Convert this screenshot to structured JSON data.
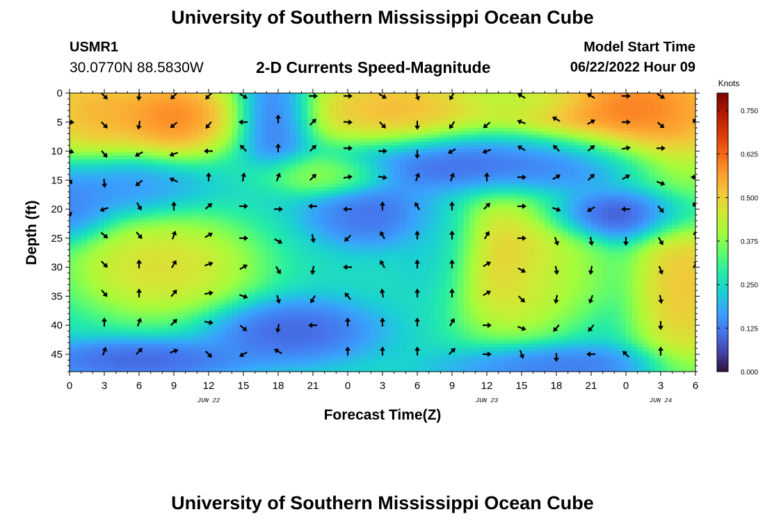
{
  "header": {
    "title": "University of Southern Mississippi Ocean Cube",
    "station_id": "USMR1",
    "station_coords": "30.0770N  88.5830W",
    "subtitle": "2-D Currents Speed-Magnitude",
    "model_start_label": "Model Start Time",
    "model_start_value": "06/22/2022 Hour 09"
  },
  "footer": {
    "title": "University of Southern Mississippi Ocean Cube"
  },
  "colors": {
    "background": "#ffffff",
    "arrow": "#000000",
    "colormap": [
      "#30123b",
      "#4145ab",
      "#4675ed",
      "#39a2fc",
      "#1bcfd4",
      "#24eca6",
      "#61fc6c",
      "#a4fc3b",
      "#d1e834",
      "#f3c63a",
      "#fe9b2d",
      "#f36315",
      "#d93806",
      "#b11901",
      "#7a0402"
    ]
  },
  "chart_data": {
    "type": "heatmap",
    "title": "2-D Currents Speed-Magnitude",
    "xlabel": "Forecast Time(Z)",
    "ylabel": "Depth (ft)",
    "x_ticks": [
      "0",
      "3",
      "6",
      "9",
      "12",
      "15",
      "18",
      "21",
      "0",
      "3",
      "6",
      "9",
      "12",
      "15",
      "18",
      "21",
      "0",
      "3",
      "6"
    ],
    "x_range_hours": [
      0,
      54
    ],
    "date_labels": [
      {
        "label": "JUN 22",
        "hour": 12
      },
      {
        "label": "JUN 23",
        "hour": 36
      },
      {
        "label": "JUN 24",
        "hour": 51
      }
    ],
    "y_ticks": [
      0,
      5,
      10,
      15,
      20,
      25,
      30,
      35,
      40,
      45
    ],
    "ylim": [
      0,
      48
    ],
    "y_inverted": true,
    "colorbar": {
      "label": "Knots",
      "ticks": [
        "0.000",
        "0.125",
        "0.250",
        "0.375",
        "0.500",
        "0.625",
        "0.750"
      ],
      "range": [
        0,
        0.8
      ]
    },
    "speed_features": [
      {
        "hour": 2,
        "depth": 3,
        "speed": 0.62,
        "sx": 3,
        "sy": 5
      },
      {
        "hour": 9,
        "depth": 4,
        "speed": 0.7,
        "sx": 3,
        "sy": 4
      },
      {
        "hour": 18,
        "depth": 4,
        "speed": 0.05,
        "sx": 1.7,
        "sy": 5
      },
      {
        "hour": 28,
        "depth": 3,
        "speed": 0.62,
        "sx": 5,
        "sy": 4
      },
      {
        "hour": 34,
        "depth": 12,
        "speed": 0.03,
        "sx": 6,
        "sy": 3
      },
      {
        "hour": 43,
        "depth": 12,
        "speed": 0.05,
        "sx": 4,
        "sy": 3
      },
      {
        "hour": 48,
        "depth": 3,
        "speed": 0.72,
        "sx": 6,
        "sy": 6
      },
      {
        "hour": 48,
        "depth": 21,
        "speed": 0.01,
        "sx": 4,
        "sy": 2.5
      },
      {
        "hour": 8,
        "depth": 30,
        "speed": 0.55,
        "sx": 4.5,
        "sy": 5
      },
      {
        "hour": 32,
        "depth": 27,
        "speed": 0.18,
        "sx": 2,
        "sy": 6
      },
      {
        "hour": 38,
        "depth": 29,
        "speed": 0.6,
        "sx": 3.5,
        "sy": 7
      },
      {
        "hour": 42,
        "depth": 31,
        "speed": 0.4,
        "sx": 3,
        "sy": 4
      },
      {
        "hour": 53,
        "depth": 33,
        "speed": 0.6,
        "sx": 2.5,
        "sy": 9
      },
      {
        "hour": 19,
        "depth": 41,
        "speed": 0.05,
        "sx": 4,
        "sy": 3
      },
      {
        "hour": 26,
        "depth": 21,
        "speed": 0.07,
        "sx": 3,
        "sy": 3
      },
      {
        "hour": 4,
        "depth": 16,
        "speed": 0.12,
        "sx": 4,
        "sy": 3
      },
      {
        "hour": 0,
        "depth": 20,
        "speed": 0.1,
        "sx": 2,
        "sy": 3
      },
      {
        "hour": 22,
        "depth": 14,
        "speed": 0.45,
        "sx": 3,
        "sy": 2
      },
      {
        "hour": 40,
        "depth": 1,
        "speed": 0.4,
        "sx": 3,
        "sy": 2
      },
      {
        "hour": 6,
        "depth": 46,
        "speed": 0.05,
        "sx": 5,
        "sy": 2
      },
      {
        "hour": 42,
        "depth": 47,
        "speed": 0.08,
        "sx": 5,
        "sy": 2
      }
    ],
    "vectors": [
      {
        "hour": 0,
        "depth": 5,
        "dir": 95
      },
      {
        "hour": 0,
        "depth": 10,
        "dir": 110
      },
      {
        "hour": 0,
        "depth": 15,
        "dir": 150
      },
      {
        "hour": 0,
        "depth": 20.5,
        "dir": 165
      },
      {
        "hour": 3,
        "depth": 0.5,
        "dir": 135
      },
      {
        "hour": 3,
        "depth": 5.5,
        "dir": 135
      },
      {
        "hour": 3,
        "depth": 10.5,
        "dir": 140
      },
      {
        "hour": 3,
        "depth": 15.5,
        "dir": 175
      },
      {
        "hour": 3,
        "depth": 20,
        "dir": 250
      },
      {
        "hour": 3,
        "depth": 24.5,
        "dir": 130
      },
      {
        "hour": 3,
        "depth": 29.5,
        "dir": 135
      },
      {
        "hour": 3,
        "depth": 34.5,
        "dir": 140
      },
      {
        "hour": 3,
        "depth": 39.5,
        "dir": 0
      },
      {
        "hour": 3,
        "depth": 44.5,
        "dir": 20
      },
      {
        "hour": 6,
        "depth": 0.5,
        "dir": 185
      },
      {
        "hour": 6,
        "depth": 5.5,
        "dir": 190
      },
      {
        "hour": 6,
        "depth": 10.5,
        "dir": 240
      },
      {
        "hour": 6,
        "depth": 15.5,
        "dir": 230
      },
      {
        "hour": 6,
        "depth": 19.5,
        "dir": 150
      },
      {
        "hour": 6,
        "depth": 24.5,
        "dir": 140
      },
      {
        "hour": 6,
        "depth": 29.5,
        "dir": 0
      },
      {
        "hour": 6,
        "depth": 34.5,
        "dir": 0
      },
      {
        "hour": 6,
        "depth": 39.5,
        "dir": 20
      },
      {
        "hour": 6,
        "depth": 44.5,
        "dir": 45
      },
      {
        "hour": 9,
        "depth": 0.5,
        "dir": 225
      },
      {
        "hour": 9,
        "depth": 5.5,
        "dir": 230
      },
      {
        "hour": 9,
        "depth": 10.5,
        "dir": 250
      },
      {
        "hour": 9,
        "depth": 15,
        "dir": 295
      },
      {
        "hour": 9,
        "depth": 19.5,
        "dir": 0
      },
      {
        "hour": 9,
        "depth": 24.5,
        "dir": 20
      },
      {
        "hour": 9,
        "depth": 29.5,
        "dir": 30
      },
      {
        "hour": 9,
        "depth": 34.5,
        "dir": 40
      },
      {
        "hour": 9,
        "depth": 39.5,
        "dir": 45
      },
      {
        "hour": 9,
        "depth": 44.5,
        "dir": 70
      },
      {
        "hour": 12,
        "depth": 0.5,
        "dir": 225
      },
      {
        "hour": 12,
        "depth": 5.5,
        "dir": 220
      },
      {
        "hour": 12,
        "depth": 10,
        "dir": 270
      },
      {
        "hour": 12,
        "depth": 14.5,
        "dir": 0
      },
      {
        "hour": 12,
        "depth": 19.5,
        "dir": 50
      },
      {
        "hour": 12,
        "depth": 24.5,
        "dir": 60
      },
      {
        "hour": 12,
        "depth": 29.5,
        "dir": 70
      },
      {
        "hour": 12,
        "depth": 34.5,
        "dir": 80
      },
      {
        "hour": 12,
        "depth": 39.5,
        "dir": 100
      },
      {
        "hour": 12,
        "depth": 45,
        "dir": 135
      },
      {
        "hour": 15,
        "depth": 0.5,
        "dir": 120
      },
      {
        "hour": 15,
        "depth": 5,
        "dir": 270
      },
      {
        "hour": 15,
        "depth": 9.5,
        "dir": 315
      },
      {
        "hour": 15,
        "depth": 14.5,
        "dir": 10
      },
      {
        "hour": 15,
        "depth": 19.5,
        "dir": 90
      },
      {
        "hour": 15,
        "depth": 25,
        "dir": 90
      },
      {
        "hour": 15,
        "depth": 30,
        "dir": 60
      },
      {
        "hour": 15,
        "depth": 35,
        "dir": 110
      },
      {
        "hour": 15,
        "depth": 40.5,
        "dir": 130
      },
      {
        "hour": 15,
        "depth": 45,
        "dir": 240
      },
      {
        "hour": 18,
        "depth": 4.5,
        "dir": 0
      },
      {
        "hour": 18,
        "depth": 9.5,
        "dir": 0
      },
      {
        "hour": 18,
        "depth": 14.5,
        "dir": 20
      },
      {
        "hour": 18,
        "depth": 20,
        "dir": 90
      },
      {
        "hour": 18,
        "depth": 25.5,
        "dir": 120
      },
      {
        "hour": 18,
        "depth": 30.5,
        "dir": 150
      },
      {
        "hour": 18,
        "depth": 35.5,
        "dir": 165
      },
      {
        "hour": 18,
        "depth": 40.5,
        "dir": 190
      },
      {
        "hour": 18,
        "depth": 44.5,
        "dir": 300
      },
      {
        "hour": 21,
        "depth": 0.5,
        "dir": 90
      },
      {
        "hour": 21,
        "depth": 5,
        "dir": 45
      },
      {
        "hour": 21,
        "depth": 9.5,
        "dir": 45
      },
      {
        "hour": 21,
        "depth": 14.5,
        "dir": 45
      },
      {
        "hour": 21,
        "depth": 19.5,
        "dir": 270
      },
      {
        "hour": 21,
        "depth": 25,
        "dir": 170
      },
      {
        "hour": 21,
        "depth": 30.5,
        "dir": 190
      },
      {
        "hour": 21,
        "depth": 35.5,
        "dir": 210
      },
      {
        "hour": 21,
        "depth": 40,
        "dir": 270
      },
      {
        "hour": 24,
        "depth": 0.5,
        "dir": 90
      },
      {
        "hour": 24,
        "depth": 5,
        "dir": 95
      },
      {
        "hour": 24,
        "depth": 9.5,
        "dir": 90
      },
      {
        "hour": 24,
        "depth": 14.5,
        "dir": 80
      },
      {
        "hour": 24,
        "depth": 20,
        "dir": 270
      },
      {
        "hour": 24,
        "depth": 25,
        "dir": 225
      },
      {
        "hour": 24,
        "depth": 30,
        "dir": 270
      },
      {
        "hour": 24,
        "depth": 35,
        "dir": 320
      },
      {
        "hour": 24,
        "depth": 39.5,
        "dir": 0
      },
      {
        "hour": 24,
        "depth": 44.5,
        "dir": 0
      },
      {
        "hour": 27,
        "depth": 0.5,
        "dir": 120
      },
      {
        "hour": 27,
        "depth": 5.5,
        "dir": 135
      },
      {
        "hour": 27,
        "depth": 10,
        "dir": 90
      },
      {
        "hour": 27,
        "depth": 14.5,
        "dir": 100
      },
      {
        "hour": 27,
        "depth": 19.5,
        "dir": 0
      },
      {
        "hour": 27,
        "depth": 24.5,
        "dir": 330
      },
      {
        "hour": 27,
        "depth": 29.5,
        "dir": 330
      },
      {
        "hour": 27,
        "depth": 34.5,
        "dir": 350
      },
      {
        "hour": 27,
        "depth": 39.5,
        "dir": 0
      },
      {
        "hour": 27,
        "depth": 44.5,
        "dir": 0
      },
      {
        "hour": 30,
        "depth": 0.5,
        "dir": 160
      },
      {
        "hour": 30,
        "depth": 5.5,
        "dir": 180
      },
      {
        "hour": 30,
        "depth": 10.5,
        "dir": 180
      },
      {
        "hour": 30,
        "depth": 14.5,
        "dir": 20
      },
      {
        "hour": 30,
        "depth": 19.5,
        "dir": 330
      },
      {
        "hour": 30,
        "depth": 24.5,
        "dir": 0
      },
      {
        "hour": 30,
        "depth": 29.5,
        "dir": 0
      },
      {
        "hour": 30,
        "depth": 34.5,
        "dir": 0
      },
      {
        "hour": 30,
        "depth": 39.5,
        "dir": 0
      },
      {
        "hour": 30,
        "depth": 44.5,
        "dir": 0
      },
      {
        "hour": 33,
        "depth": 0.5,
        "dir": 210
      },
      {
        "hour": 33,
        "depth": 5.5,
        "dir": 215
      },
      {
        "hour": 33,
        "depth": 10,
        "dir": 240
      },
      {
        "hour": 33,
        "depth": 14.5,
        "dir": 20
      },
      {
        "hour": 33,
        "depth": 19.5,
        "dir": 0
      },
      {
        "hour": 33,
        "depth": 24.5,
        "dir": 0
      },
      {
        "hour": 33,
        "depth": 29.5,
        "dir": 0
      },
      {
        "hour": 33,
        "depth": 34.5,
        "dir": 0
      },
      {
        "hour": 33,
        "depth": 39.5,
        "dir": 30
      },
      {
        "hour": 33,
        "depth": 44.5,
        "dir": 45
      },
      {
        "hour": 36,
        "depth": 5.5,
        "dir": 230
      },
      {
        "hour": 36,
        "depth": 10,
        "dir": 250
      },
      {
        "hour": 36,
        "depth": 14.5,
        "dir": 0
      },
      {
        "hour": 36,
        "depth": 19.5,
        "dir": 45
      },
      {
        "hour": 36,
        "depth": 24.5,
        "dir": 30
      },
      {
        "hour": 36,
        "depth": 29.5,
        "dir": 60
      },
      {
        "hour": 36,
        "depth": 34.5,
        "dir": 60
      },
      {
        "hour": 36,
        "depth": 40,
        "dir": 90
      },
      {
        "hour": 36,
        "depth": 45,
        "dir": 90
      },
      {
        "hour": 39,
        "depth": 0.5,
        "dir": 300
      },
      {
        "hour": 39,
        "depth": 5,
        "dir": 290
      },
      {
        "hour": 39,
        "depth": 9.5,
        "dir": 300
      },
      {
        "hour": 39,
        "depth": 14.5,
        "dir": 90
      },
      {
        "hour": 39,
        "depth": 19.5,
        "dir": 90
      },
      {
        "hour": 39,
        "depth": 25,
        "dir": 90
      },
      {
        "hour": 39,
        "depth": 30.5,
        "dir": 120
      },
      {
        "hour": 39,
        "depth": 35.5,
        "dir": 135
      },
      {
        "hour": 39,
        "depth": 40.5,
        "dir": 110
      },
      {
        "hour": 39,
        "depth": 45,
        "dir": 160
      },
      {
        "hour": 42,
        "depth": 4.5,
        "dir": 300
      },
      {
        "hour": 42,
        "depth": 9.5,
        "dir": 315
      },
      {
        "hour": 42,
        "depth": 14.5,
        "dir": 60
      },
      {
        "hour": 42,
        "depth": 20,
        "dir": 110
      },
      {
        "hour": 42,
        "depth": 25.5,
        "dir": 160
      },
      {
        "hour": 42,
        "depth": 30.5,
        "dir": 170
      },
      {
        "hour": 42,
        "depth": 35.5,
        "dir": 190
      },
      {
        "hour": 42,
        "depth": 40.5,
        "dir": 220
      },
      {
        "hour": 42,
        "depth": 45.5,
        "dir": 180
      },
      {
        "hour": 45,
        "depth": 0.5,
        "dir": 300
      },
      {
        "hour": 45,
        "depth": 5,
        "dir": 60
      },
      {
        "hour": 45,
        "depth": 9.5,
        "dir": 50
      },
      {
        "hour": 45,
        "depth": 14.5,
        "dir": 45
      },
      {
        "hour": 45,
        "depth": 20,
        "dir": 240
      },
      {
        "hour": 45,
        "depth": 25.5,
        "dir": 170
      },
      {
        "hour": 45,
        "depth": 30.5,
        "dir": 190
      },
      {
        "hour": 45,
        "depth": 35.5,
        "dir": 200
      },
      {
        "hour": 45,
        "depth": 40.5,
        "dir": 220
      },
      {
        "hour": 45,
        "depth": 45,
        "dir": 270
      },
      {
        "hour": 48,
        "depth": 0.5,
        "dir": 90
      },
      {
        "hour": 48,
        "depth": 5,
        "dir": 90
      },
      {
        "hour": 48,
        "depth": 9.5,
        "dir": 80
      },
      {
        "hour": 48,
        "depth": 14.5,
        "dir": 60
      },
      {
        "hour": 48,
        "depth": 20,
        "dir": 270
      },
      {
        "hour": 48,
        "depth": 25.5,
        "dir": 180
      },
      {
        "hour": 48,
        "depth": 45,
        "dir": 315
      },
      {
        "hour": 51,
        "depth": 0.5,
        "dir": 120
      },
      {
        "hour": 51,
        "depth": 5.5,
        "dir": 130
      },
      {
        "hour": 51,
        "depth": 9.5,
        "dir": 90
      },
      {
        "hour": 51,
        "depth": 15.5,
        "dir": 110
      },
      {
        "hour": 51,
        "depth": 20,
        "dir": 140
      },
      {
        "hour": 51,
        "depth": 25.5,
        "dir": 150
      },
      {
        "hour": 51,
        "depth": 30.5,
        "dir": 160
      },
      {
        "hour": 51,
        "depth": 35.5,
        "dir": 170
      },
      {
        "hour": 51,
        "depth": 40,
        "dir": 180
      },
      {
        "hour": 51,
        "depth": 44.5,
        "dir": 0
      },
      {
        "hour": 54,
        "depth": 4.5,
        "dir": 210
      },
      {
        "hour": 54,
        "depth": 14.5,
        "dir": 270
      },
      {
        "hour": 54,
        "depth": 19.5,
        "dir": 330
      },
      {
        "hour": 54,
        "depth": 24.5,
        "dir": 0
      },
      {
        "hour": 54,
        "depth": 29.5,
        "dir": 30
      }
    ]
  }
}
